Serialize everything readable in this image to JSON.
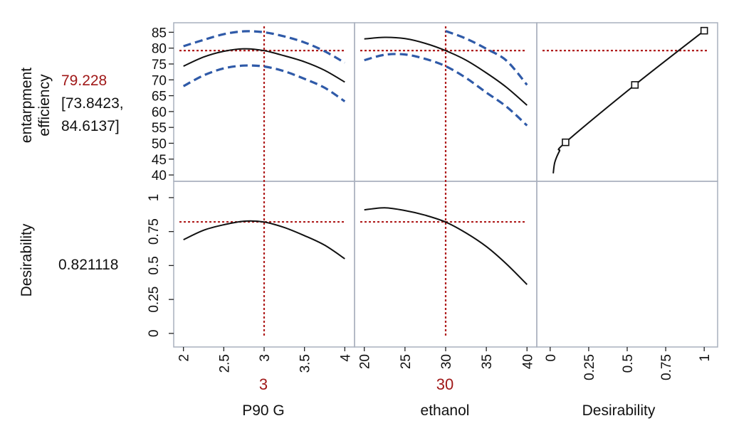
{
  "response_label": {
    "line1": "entarpment",
    "line2": "efficiency",
    "predicted": "79.228",
    "ci_low": "[73.8423,",
    "ci_high": "84.6137]"
  },
  "desirability_label": {
    "name": "Desirability",
    "value": "0.821118"
  },
  "colors": {
    "fit": "#111111",
    "ci": "#2f5aa8",
    "ref": "#b01e1e",
    "grid": "#a9b0bd"
  },
  "chart_data": {
    "type": "line",
    "title": "",
    "rows": [
      {
        "name": "entarpment efficiency",
        "ylim": [
          38,
          88
        ],
        "yticks": [
          {
            "v": 40,
            "t": "40"
          },
          {
            "v": 45,
            "t": "45"
          },
          {
            "v": 50,
            "t": "50"
          },
          {
            "v": 55,
            "t": "55"
          },
          {
            "v": 60,
            "t": "60"
          },
          {
            "v": 65,
            "t": "65"
          },
          {
            "v": 70,
            "t": "70"
          },
          {
            "v": 75,
            "t": "75"
          },
          {
            "v": 80,
            "t": "80"
          },
          {
            "v": 85,
            "t": "85"
          }
        ],
        "current": 79.228
      },
      {
        "name": "Desirability",
        "ylim": [
          -0.1,
          1.12
        ],
        "yticks": [
          {
            "v": 0,
            "t": "0"
          },
          {
            "v": 0.25,
            "t": "0.25"
          },
          {
            "v": 0.5,
            "t": "0.5"
          },
          {
            "v": 0.75,
            "t": "0.75"
          },
          {
            "v": 1,
            "t": "1"
          }
        ],
        "current": 0.821118
      }
    ],
    "columns": [
      {
        "name": "P90 G",
        "current_label": "3",
        "current": 3,
        "xlim": [
          1.95,
          4.05
        ],
        "xticks": [
          {
            "v": 2,
            "t": "2"
          },
          {
            "v": 2.5,
            "t": "2.5"
          },
          {
            "v": 3,
            "t": "3"
          },
          {
            "v": 3.5,
            "t": "3.5"
          },
          {
            "v": 4,
            "t": "4"
          }
        ]
      },
      {
        "name": "ethanol",
        "current_label": "30",
        "current": 30,
        "xlim": [
          19.5,
          40.5
        ],
        "xticks": [
          {
            "v": 20,
            "t": "20"
          },
          {
            "v": 25,
            "t": "25"
          },
          {
            "v": 30,
            "t": "30"
          },
          {
            "v": 35,
            "t": "35"
          },
          {
            "v": 40,
            "t": "40"
          }
        ]
      },
      {
        "name": "Desirability",
        "current_label": "",
        "xlim": [
          -0.05,
          1.05
        ],
        "xticks": [
          {
            "v": 0,
            "t": "0"
          },
          {
            "v": 0.25,
            "t": "0.25"
          },
          {
            "v": 0.5,
            "t": "0.5"
          },
          {
            "v": 0.75,
            "t": "0.75"
          },
          {
            "v": 1,
            "t": "1"
          }
        ]
      }
    ],
    "series": [
      {
        "name": "fit",
        "row": 0,
        "col": 0,
        "x": [
          2,
          2.25,
          2.5,
          2.75,
          3,
          3.25,
          3.5,
          3.75,
          4
        ],
        "y": [
          74.3,
          77.2,
          79.0,
          79.8,
          79.2,
          77.6,
          75.7,
          73.0,
          69.3
        ]
      },
      {
        "name": "upper ci",
        "row": 0,
        "col": 0,
        "x": [
          2,
          2.25,
          2.5,
          2.75,
          3,
          3.25,
          3.5,
          3.75,
          4
        ],
        "y": [
          80.6,
          82.6,
          84.4,
          85.3,
          85.0,
          83.7,
          81.8,
          79.0,
          75.4
        ]
      },
      {
        "name": "lower ci",
        "row": 0,
        "col": 0,
        "x": [
          2,
          2.25,
          2.5,
          2.75,
          3,
          3.25,
          3.5,
          3.75,
          4
        ],
        "y": [
          68.0,
          71.4,
          73.6,
          74.5,
          74.2,
          72.7,
          70.3,
          67.5,
          63.2
        ]
      },
      {
        "name": "fit",
        "row": 0,
        "col": 1,
        "x": [
          20,
          22.5,
          25,
          27.5,
          30,
          32.5,
          35,
          37.5,
          40
        ],
        "y": [
          82.9,
          83.4,
          83.0,
          81.5,
          79.2,
          76.2,
          72.2,
          67.6,
          62.0
        ]
      },
      {
        "name": "upper ci",
        "row": 0,
        "col": 1,
        "x": [
          30,
          32.5,
          35,
          37.5,
          40
        ],
        "y": [
          85.4,
          83.0,
          79.8,
          76.0,
          68.4
        ]
      },
      {
        "name": "lower ci",
        "row": 0,
        "col": 1,
        "x": [
          20,
          22.5,
          25,
          27.5,
          30,
          32.5,
          35,
          37.5,
          40
        ],
        "y": [
          76.2,
          77.9,
          78.0,
          76.6,
          74.3,
          70.6,
          66.0,
          61.5,
          55.6
        ]
      },
      {
        "name": "desirability function",
        "row": 0,
        "col": 2,
        "x": [
          0.02,
          0.03,
          0.06,
          0.1,
          0.55,
          1.0
        ],
        "y": [
          40.5,
          44.0,
          47.5,
          50.3,
          68.4,
          85.5
        ]
      },
      {
        "name": "fit",
        "row": 1,
        "col": 0,
        "x": [
          2,
          2.25,
          2.5,
          2.75,
          3,
          3.25,
          3.5,
          3.75,
          4
        ],
        "y": [
          0.69,
          0.76,
          0.8,
          0.826,
          0.82,
          0.78,
          0.72,
          0.65,
          0.55
        ]
      },
      {
        "name": "fit",
        "row": 1,
        "col": 1,
        "x": [
          20,
          22.5,
          25,
          27.5,
          30,
          32.5,
          35,
          37.5,
          40
        ],
        "y": [
          0.91,
          0.925,
          0.905,
          0.87,
          0.82,
          0.74,
          0.64,
          0.51,
          0.36
        ]
      }
    ],
    "markers": [
      {
        "row": 0,
        "col": 2,
        "x": 0.1,
        "y": 50.3
      },
      {
        "row": 0,
        "col": 2,
        "x": 0.55,
        "y": 68.4
      },
      {
        "row": 0,
        "col": 2,
        "x": 1.0,
        "y": 85.5
      }
    ]
  }
}
